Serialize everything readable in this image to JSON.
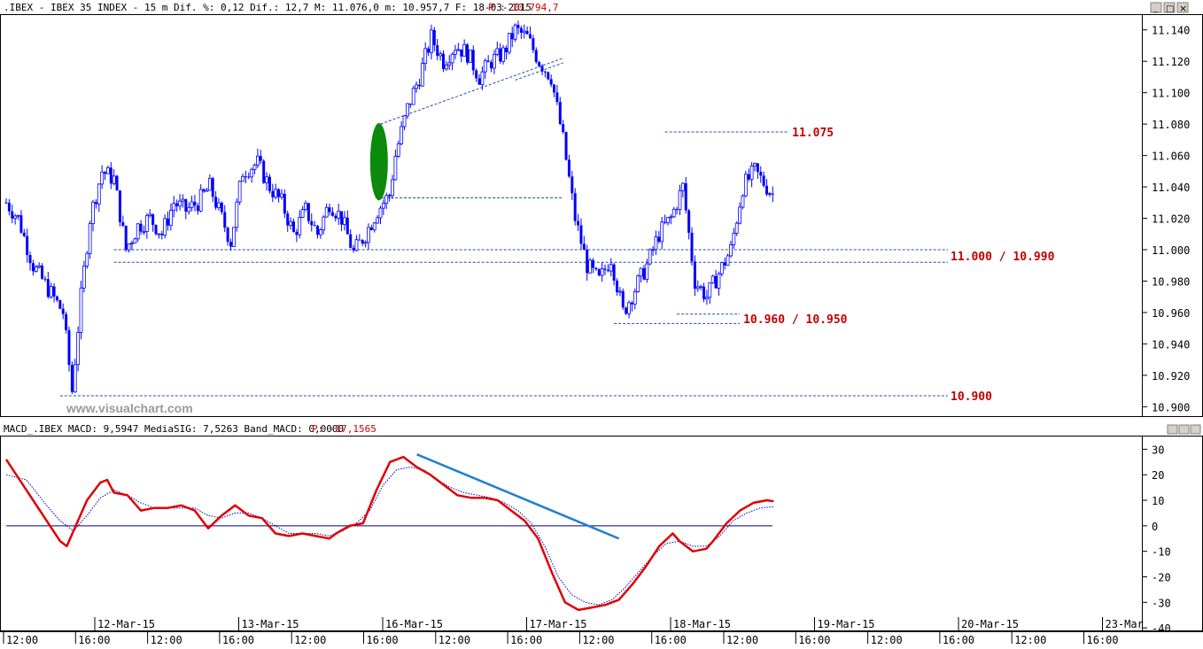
{
  "header": {
    "instrument": ".IBEX - IBEX 35 INDEX -  15 m Dif. %: 0,12 Dif.: 12,7 M: 11.076,0 m: 10.957,7 F: 18-03-2015",
    "last_price": "P : 10.794,7",
    "watermark": "www.visualchart.com"
  },
  "macd_header": {
    "prefix": "MACD_.IBEX MACD: 9,5947 MediaSIG: 7,5263 Band_MACD: 0,0000",
    "last": "P: -17,1565"
  },
  "window_controls": [
    "_",
    "□",
    "×"
  ],
  "colors": {
    "candle": "#0000ff",
    "macd": "#e00000",
    "signal": "#0000cc",
    "trendline": "#1e7fd0",
    "ellipse": "#0c8a0c",
    "level_text": "#c00000",
    "guide": "#1f4fa8"
  },
  "chart_data": [
    {
      "type": "candlestick",
      "title": "IBEX 35 INDEX 15 m",
      "ylim": [
        10894,
        11150
      ],
      "y_ticks": [
        "11.140",
        "11.120",
        "11.100",
        "11.080",
        "11.060",
        "11.040",
        "11.020",
        "11.000",
        "10.980",
        "10.960",
        "10.940",
        "10.920",
        "10.900"
      ],
      "levels": [
        {
          "label": "11.075",
          "value": 11075
        },
        {
          "label": "11.000 / 10.990",
          "values": [
            11000,
            10992
          ]
        },
        {
          "label": "10.960 / 10.950",
          "values": [
            10959,
            10953
          ]
        },
        {
          "label": "10.900",
          "value": 10907
        }
      ],
      "annotations": [
        "green-ellipse-gap",
        "rising-trendline"
      ],
      "close_path": [
        [
          0,
          11030
        ],
        [
          4,
          11020
        ],
        [
          9,
          10990
        ],
        [
          14,
          10975
        ],
        [
          19,
          10960
        ],
        [
          22,
          10910
        ],
        [
          25,
          10970
        ],
        [
          28,
          11020
        ],
        [
          32,
          11050
        ],
        [
          36,
          11045
        ],
        [
          40,
          11000
        ],
        [
          44,
          11015
        ],
        [
          48,
          11020
        ],
        [
          52,
          11010
        ],
        [
          56,
          11030
        ],
        [
          60,
          11025
        ],
        [
          64,
          11030
        ],
        [
          68,
          11040
        ],
        [
          72,
          11020
        ],
        [
          75,
          11005
        ],
        [
          79,
          11050
        ],
        [
          84,
          11055
        ],
        [
          88,
          11040
        ],
        [
          92,
          11030
        ],
        [
          96,
          11010
        ],
        [
          100,
          11025
        ],
        [
          104,
          11010
        ],
        [
          108,
          11030
        ],
        [
          112,
          11020
        ],
        [
          116,
          10998
        ],
        [
          120,
          11010
        ],
        [
          124,
          11025
        ],
        [
          128,
          11035
        ],
        [
          130,
          11060
        ],
        [
          134,
          11090
        ],
        [
          138,
          11110
        ],
        [
          142,
          11135
        ],
        [
          146,
          11120
        ],
        [
          150,
          11130
        ],
        [
          154,
          11125
        ],
        [
          158,
          11110
        ],
        [
          162,
          11120
        ],
        [
          166,
          11125
        ],
        [
          170,
          11140
        ],
        [
          174,
          11135
        ],
        [
          178,
          11120
        ],
        [
          182,
          11110
        ],
        [
          186,
          11070
        ],
        [
          190,
          11020
        ],
        [
          194,
          10990
        ],
        [
          198,
          10980
        ],
        [
          202,
          10995
        ],
        [
          206,
          10960
        ],
        [
          210,
          10975
        ],
        [
          214,
          10990
        ],
        [
          218,
          11010
        ],
        [
          222,
          11020
        ],
        [
          226,
          11040
        ],
        [
          230,
          10980
        ],
        [
          234,
          10970
        ],
        [
          238,
          10985
        ],
        [
          242,
          11000
        ],
        [
          246,
          11040
        ],
        [
          250,
          11050
        ],
        [
          254,
          11040
        ],
        [
          256,
          11035
        ]
      ]
    },
    {
      "type": "line",
      "title": "MACD",
      "ylim": [
        -41,
        35
      ],
      "y_ticks": [
        "30",
        "20",
        "10",
        "0",
        "-10",
        "-20",
        "-30",
        "-40"
      ],
      "series": [
        {
          "name": "MACD",
          "values": [
            [
              0,
              26
            ],
            [
              4,
              18
            ],
            [
              8,
              10
            ],
            [
              12,
              2
            ],
            [
              16,
              -6
            ],
            [
              18,
              -8
            ],
            [
              20,
              -2
            ],
            [
              24,
              10
            ],
            [
              28,
              17
            ],
            [
              30,
              18
            ],
            [
              32,
              13
            ],
            [
              36,
              12
            ],
            [
              40,
              6
            ],
            [
              44,
              7
            ],
            [
              48,
              7
            ],
            [
              52,
              8
            ],
            [
              56,
              6
            ],
            [
              60,
              -1
            ],
            [
              64,
              4
            ],
            [
              68,
              8
            ],
            [
              72,
              4
            ],
            [
              76,
              3
            ],
            [
              80,
              -3
            ],
            [
              84,
              -4
            ],
            [
              88,
              -3
            ],
            [
              92,
              -4
            ],
            [
              96,
              -5
            ],
            [
              98,
              -3
            ],
            [
              102,
              0
            ],
            [
              106,
              1
            ],
            [
              110,
              14
            ],
            [
              114,
              25
            ],
            [
              118,
              27
            ],
            [
              122,
              23
            ],
            [
              126,
              20
            ],
            [
              130,
              16
            ],
            [
              134,
              12
            ],
            [
              138,
              11
            ],
            [
              142,
              11
            ],
            [
              146,
              10
            ],
            [
              150,
              6
            ],
            [
              154,
              2
            ],
            [
              158,
              -5
            ],
            [
              162,
              -18
            ],
            [
              166,
              -30
            ],
            [
              170,
              -33
            ],
            [
              174,
              -32
            ],
            [
              178,
              -31
            ],
            [
              182,
              -29
            ],
            [
              186,
              -23
            ],
            [
              190,
              -16
            ],
            [
              194,
              -8
            ],
            [
              198,
              -3
            ],
            [
              200,
              -6
            ],
            [
              204,
              -10
            ],
            [
              208,
              -9
            ],
            [
              210,
              -6
            ],
            [
              214,
              1
            ],
            [
              218,
              6
            ],
            [
              222,
              9
            ],
            [
              226,
              10
            ],
            [
              228,
              9.6
            ]
          ]
        },
        {
          "name": "MediaSIG",
          "values": [
            [
              0,
              20
            ],
            [
              6,
              18
            ],
            [
              12,
              8
            ],
            [
              16,
              2
            ],
            [
              20,
              -2
            ],
            [
              24,
              4
            ],
            [
              28,
              11
            ],
            [
              32,
              14
            ],
            [
              36,
              12
            ],
            [
              40,
              9
            ],
            [
              44,
              7
            ],
            [
              48,
              7
            ],
            [
              52,
              7
            ],
            [
              56,
              7
            ],
            [
              60,
              4
            ],
            [
              64,
              3
            ],
            [
              68,
              5
            ],
            [
              72,
              5
            ],
            [
              76,
              3
            ],
            [
              80,
              0
            ],
            [
              84,
              -3
            ],
            [
              88,
              -3
            ],
            [
              92,
              -3
            ],
            [
              96,
              -4
            ],
            [
              100,
              -2
            ],
            [
              104,
              1
            ],
            [
              108,
              6
            ],
            [
              112,
              16
            ],
            [
              116,
              22
            ],
            [
              120,
              23
            ],
            [
              124,
              22
            ],
            [
              128,
              18
            ],
            [
              132,
              15
            ],
            [
              136,
              13
            ],
            [
              140,
              12
            ],
            [
              144,
              11
            ],
            [
              148,
              9
            ],
            [
              152,
              6
            ],
            [
              156,
              1
            ],
            [
              160,
              -8
            ],
            [
              164,
              -20
            ],
            [
              168,
              -27
            ],
            [
              172,
              -30
            ],
            [
              176,
              -31
            ],
            [
              180,
              -29
            ],
            [
              184,
              -24
            ],
            [
              188,
              -18
            ],
            [
              192,
              -12
            ],
            [
              196,
              -7
            ],
            [
              200,
              -6
            ],
            [
              204,
              -8
            ],
            [
              208,
              -8
            ],
            [
              212,
              -4
            ],
            [
              216,
              2
            ],
            [
              220,
              5
            ],
            [
              224,
              7
            ],
            [
              228,
              7.5
            ]
          ]
        }
      ],
      "trendline": [
        [
          122,
          28
        ],
        [
          182,
          -5
        ]
      ]
    }
  ],
  "x_axis": {
    "dates": [
      "12-Mar-15",
      "13-Mar-15",
      "16-Mar-15",
      "17-Mar-15",
      "18-Mar-15",
      "19-Mar-15",
      "20-Mar-15",
      "23-Mar"
    ],
    "times": [
      "12:00",
      "16:00",
      "12:00",
      "16:00",
      "12:00",
      "16:00",
      "12:00",
      "16:00",
      "12:00",
      "16:00",
      "12:00",
      "16:00",
      "12:00",
      "16:00",
      "12:00",
      "16:00"
    ]
  }
}
